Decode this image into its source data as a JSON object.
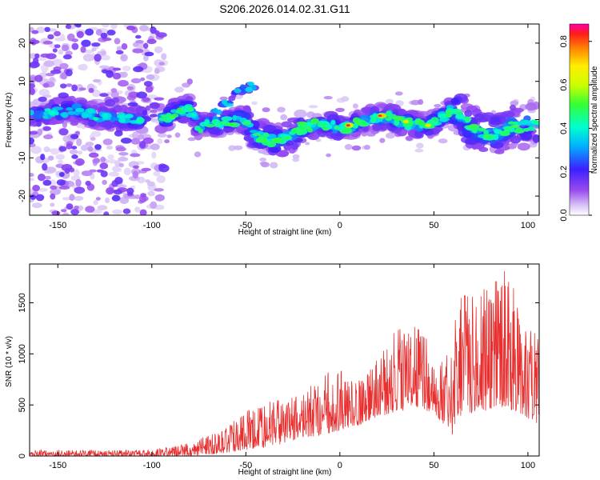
{
  "chart_data": [
    {
      "type": "heatmap",
      "title": "S206.2026.014.02.31.G11",
      "xlabel": "Height of straight line (km)",
      "ylabel": "Frequency (Hz)",
      "xlim": [
        -165,
        106
      ],
      "ylim": [
        -25,
        25
      ],
      "xticks": [
        -150,
        -100,
        -50,
        0,
        50,
        100
      ],
      "yticks": [
        -20,
        -10,
        0,
        10,
        20
      ],
      "colorbar": {
        "label": "Normalized spectral amplitude",
        "range": [
          0,
          0.88
        ],
        "ticks": [
          0.0,
          0.2,
          0.4,
          0.6,
          0.8
        ]
      },
      "trace": {
        "x": [
          -165,
          -150,
          -140,
          -130,
          -110,
          -100,
          -92,
          -88,
          -80,
          -75,
          -70,
          -62,
          -55,
          -50,
          -45,
          -40,
          -35,
          -30,
          -25,
          -20,
          -10,
          0,
          5,
          10,
          15,
          20,
          25,
          30,
          35,
          40,
          45,
          50,
          55,
          60,
          65,
          70,
          75,
          80,
          85,
          90,
          95,
          100,
          106
        ],
        "f": [
          1,
          2,
          2.5,
          1,
          0,
          0,
          0.5,
          2,
          3,
          -2,
          -1,
          -1,
          0,
          -0.5,
          -4,
          -5,
          -5.5,
          -5,
          -4,
          -2,
          -1,
          -2,
          -2,
          -1,
          0,
          0.5,
          1,
          0,
          -1,
          -1,
          -2,
          -1,
          1,
          2.5,
          1,
          -2,
          -3.5,
          -4,
          -3,
          -2,
          -2,
          -1.5,
          -1
        ],
        "branch_x": [
          -70,
          -60,
          -55,
          -50,
          -45
        ],
        "branch_f": [
          1,
          4,
          7,
          8,
          9
        ]
      },
      "hotspots": [
        {
          "x": 5,
          "f": -1.5,
          "amplitude": 0.85
        },
        {
          "x": 22,
          "f": 1,
          "amplitude": 0.85
        },
        {
          "x": 35,
          "f": -0.5,
          "amplitude": 0.7
        },
        {
          "x": 46,
          "f": -1.5,
          "amplitude": 0.7
        },
        {
          "x": -90,
          "f": 0.5,
          "amplitude": 0.55
        },
        {
          "x": -80,
          "f": 2.5,
          "amplitude": 0.5
        },
        {
          "x": -40,
          "f": -5,
          "amplitude": 0.45
        }
      ]
    },
    {
      "type": "line",
      "xlabel": "Height of straight line (km)",
      "ylabel": "SNR (10 * v/v)",
      "xlim": [
        -165,
        106
      ],
      "ylim": [
        0,
        1880
      ],
      "xticks": [
        -150,
        -100,
        -50,
        0,
        50,
        100
      ],
      "yticks": [
        0,
        500,
        1000,
        1500
      ],
      "color": "#e83030",
      "envelope": {
        "x": [
          -165,
          -100,
          -90,
          -80,
          -70,
          -60,
          -50,
          -40,
          -30,
          -20,
          -10,
          0,
          10,
          20,
          30,
          40,
          50,
          60,
          62,
          70,
          80,
          88,
          95,
          106
        ],
        "min": [
          0,
          0,
          0,
          0,
          10,
          30,
          60,
          80,
          120,
          180,
          200,
          250,
          300,
          380,
          420,
          480,
          420,
          200,
          380,
          420,
          450,
          480,
          420,
          300
        ],
        "max": [
          60,
          60,
          90,
          140,
          200,
          320,
          480,
          520,
          560,
          600,
          820,
          850,
          760,
          950,
          1250,
          1300,
          1050,
          1000,
          1650,
          1550,
          1750,
          1850,
          1550,
          1200
        ]
      }
    }
  ]
}
